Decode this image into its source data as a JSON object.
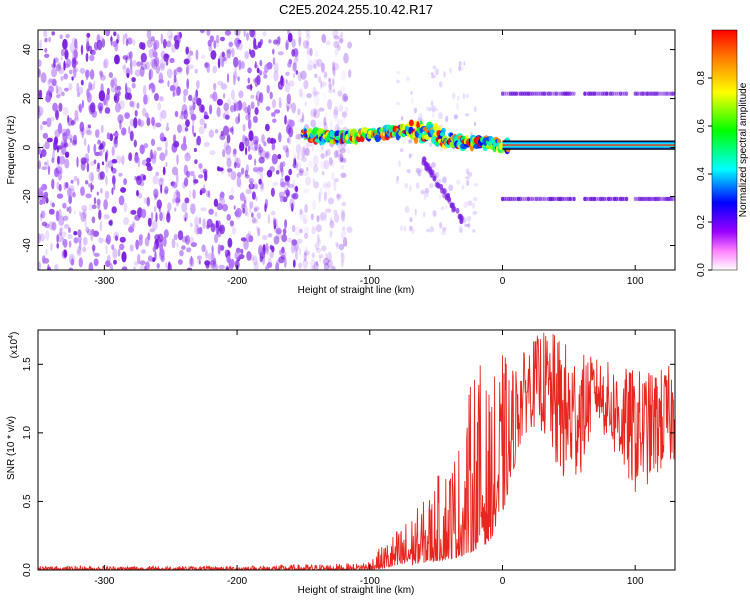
{
  "figure": {
    "title": "C2E5.2024.255.10.42.R17"
  },
  "colors": {
    "snr_line": "#e8261f",
    "scatter": "#7a1fe0",
    "band": "#6a10d8"
  },
  "chart_data": [
    {
      "type": "heatmap",
      "title": "C2E5.2024.255.10.42.R17",
      "xlabel": "Height of straight line (km)",
      "ylabel": "Frequency (Hz)",
      "xlim": [
        -350,
        130
      ],
      "ylim": [
        -50,
        48
      ],
      "xticks": [
        -300,
        -200,
        -100,
        0,
        100
      ],
      "yticks": [
        -40,
        -20,
        0,
        20,
        40
      ],
      "grid": false,
      "noise_region": {
        "x": [
          -350,
          -135
        ],
        "y": [
          -50,
          48
        ]
      },
      "signal_ridge": [
        {
          "x": -150,
          "y": 5
        },
        {
          "x": -120,
          "y": 4
        },
        {
          "x": -90,
          "y": 6
        },
        {
          "x": -70,
          "y": 7
        },
        {
          "x": -50,
          "y": 5
        },
        {
          "x": -30,
          "y": 2
        },
        {
          "x": -10,
          "y": 2
        },
        {
          "x": 0,
          "y": 1
        },
        {
          "x": 130,
          "y": 1
        }
      ],
      "sidebands": [
        {
          "y": 22,
          "x": [
            0,
            130
          ]
        },
        {
          "y": -21,
          "x": [
            0,
            130
          ]
        }
      ],
      "colorbar": {
        "label": "Normalized spectral amplitude",
        "range": [
          0.0,
          1.0
        ],
        "ticks": [
          0.0,
          0.2,
          0.4,
          0.6,
          0.8
        ],
        "tick_labels": [
          "0.0",
          "0.2",
          "0.4",
          "0.6",
          "0.8"
        ],
        "colormap": [
          "#ffffff",
          "#ff00ff",
          "#7000ff",
          "#0000ff",
          "#00ffff",
          "#00ff00",
          "#ffff00",
          "#ff0000"
        ]
      }
    },
    {
      "type": "line",
      "xlabel": "Height of straight line (km)",
      "ylabel": "SNR (10 * v/v)",
      "scale_label": "(x10",
      "scale_exponent": "4",
      "scale_suffix": ")",
      "xlim": [
        -350,
        130
      ],
      "ylim": [
        0,
        1.75
      ],
      "xticks": [
        -300,
        -200,
        -100,
        0,
        100
      ],
      "yticks": [
        0.0,
        0.5,
        1.0,
        1.5
      ],
      "ytick_labels": [
        "0.0",
        "0.5",
        "1.0",
        "1.5"
      ],
      "grid": false,
      "series": [
        {
          "envelope_x": [
            -350,
            -200,
            -110,
            -100,
            -80,
            -60,
            -40,
            -30,
            -20,
            -10,
            0,
            10,
            20,
            30,
            40,
            50,
            60,
            70,
            80,
            90,
            100,
            110,
            120,
            130
          ],
          "envelope_low": [
            0.0,
            0.0,
            0.0,
            0.0,
            0.02,
            0.05,
            0.08,
            0.1,
            0.15,
            0.2,
            0.4,
            0.8,
            1.05,
            1.0,
            0.72,
            0.55,
            0.72,
            1.1,
            0.9,
            0.7,
            0.55,
            0.62,
            0.7,
            0.78
          ],
          "envelope_high": [
            0.03,
            0.03,
            0.05,
            0.08,
            0.3,
            0.5,
            0.85,
            1.0,
            1.65,
            1.3,
            1.6,
            1.5,
            1.65,
            1.75,
            1.72,
            1.65,
            1.58,
            1.55,
            1.52,
            1.48,
            1.47,
            1.45,
            1.48,
            1.5
          ]
        }
      ]
    }
  ]
}
